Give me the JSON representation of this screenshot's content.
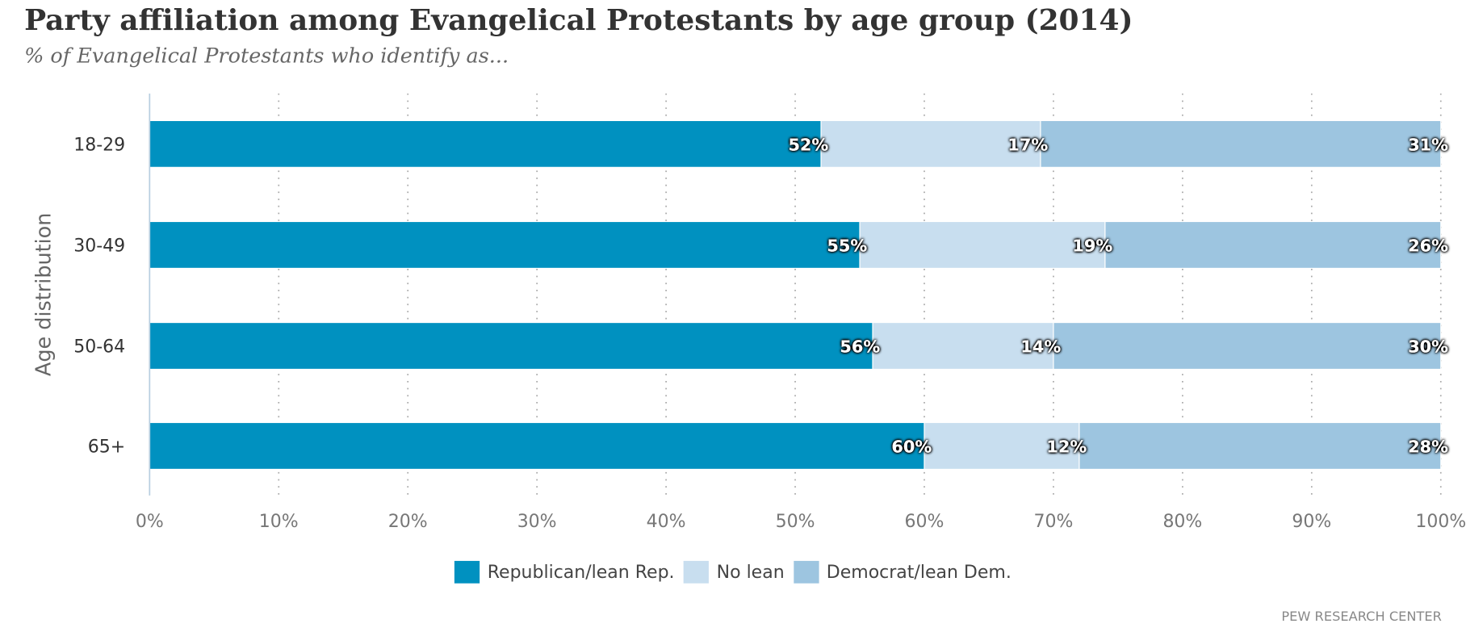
{
  "title": "Party affiliation among Evangelical Protestants by age group (2014)",
  "subtitle": "% of Evangelical Protestants who identify as...",
  "source": "PEW RESEARCH CENTER",
  "chart_data": {
    "type": "bar",
    "orientation": "horizontal",
    "stacked": true,
    "categories": [
      "18-29",
      "30-49",
      "50-64",
      "65+"
    ],
    "ylabel": "Age distribution",
    "xlabel": "",
    "xlim": [
      0,
      100
    ],
    "xticks": [
      "0%",
      "10%",
      "20%",
      "30%",
      "40%",
      "50%",
      "60%",
      "70%",
      "80%",
      "90%",
      "100%"
    ],
    "grid": "vertical dotted",
    "legend_position": "bottom",
    "series": [
      {
        "name": "Republican/lean Rep.",
        "color": "#0091c0",
        "values": [
          52,
          55,
          56,
          60
        ]
      },
      {
        "name": "No lean",
        "color": "#c8deef",
        "values": [
          17,
          19,
          14,
          12
        ]
      },
      {
        "name": "Democrat/lean Dem.",
        "color": "#9dc5e0",
        "values": [
          31,
          26,
          30,
          28
        ]
      }
    ]
  }
}
